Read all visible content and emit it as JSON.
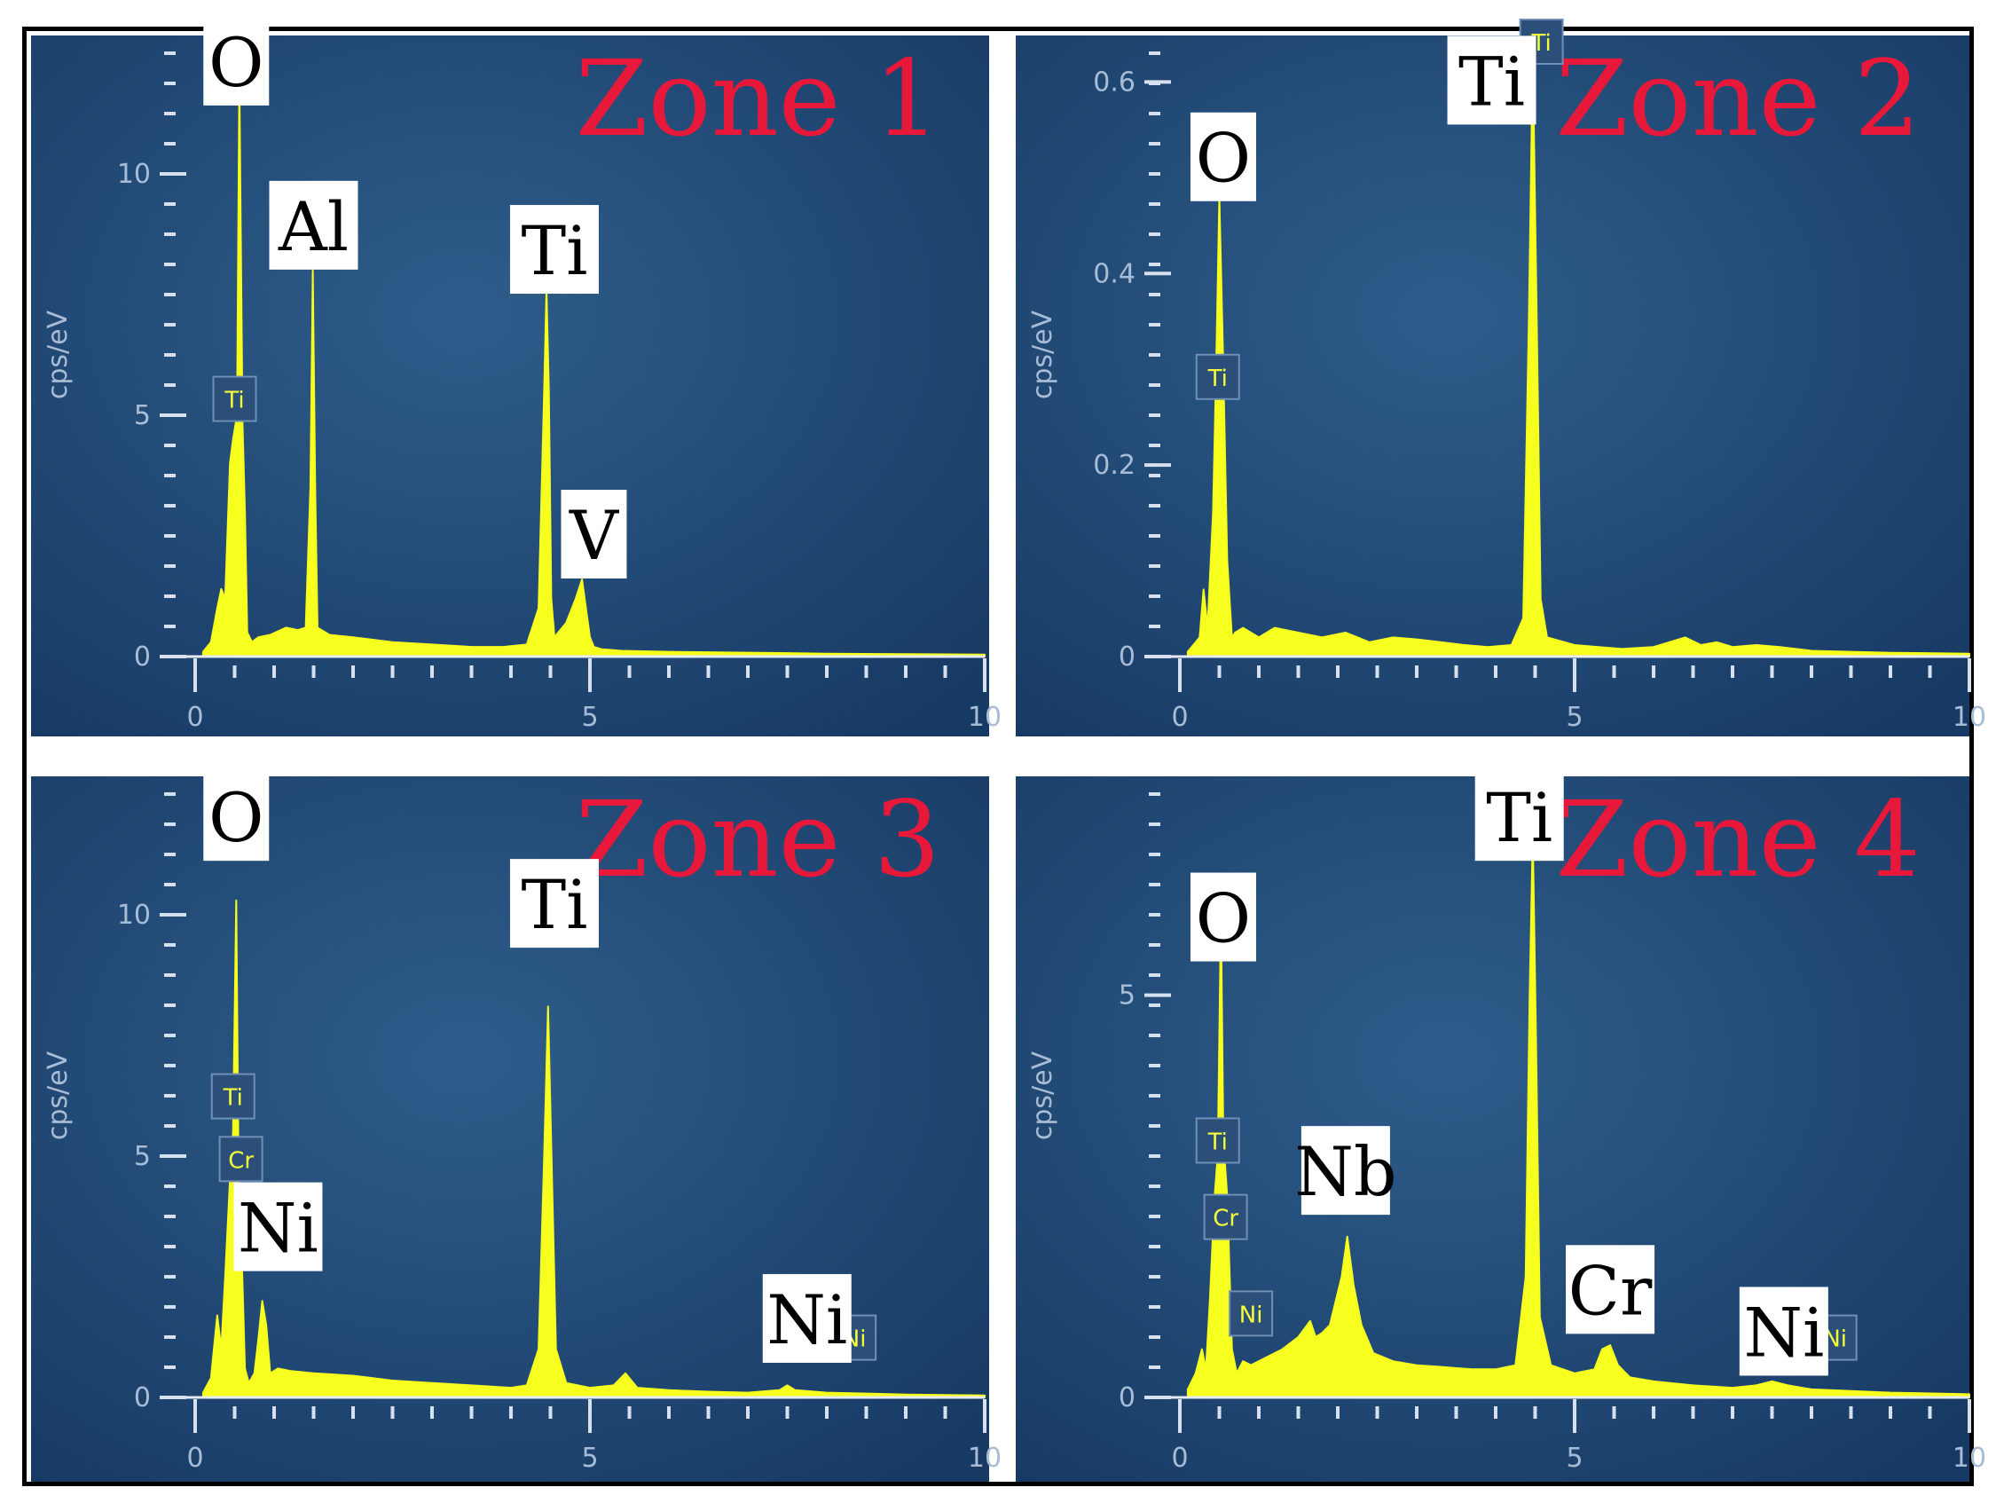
{
  "chart_data": [
    {
      "type": "area",
      "title": "Zone 1",
      "ylabel": "cps/eV",
      "xlim": [
        0,
        10
      ],
      "ylim": [
        0,
        12.5
      ],
      "xticks": [
        0,
        5,
        10
      ],
      "yticks": [
        0,
        5,
        10
      ],
      "series": [
        {
          "x": [
            0.1,
            0.2,
            0.28,
            0.33,
            0.38,
            0.44,
            0.48,
            0.53,
            0.56,
            0.6,
            0.63,
            0.66,
            0.72,
            0.8,
            0.95,
            1.15,
            1.3,
            1.4,
            1.46,
            1.49,
            1.52,
            1.55,
            1.6,
            1.7,
            2.0,
            2.5,
            3.0,
            3.5,
            3.9,
            4.2,
            4.35,
            4.42,
            4.45,
            4.48,
            4.51,
            4.55,
            4.6,
            4.7,
            4.82,
            4.9,
            4.95,
            5.0,
            5.05,
            5.15,
            5.4,
            6.0,
            7.0,
            8.0,
            9.0,
            10.0
          ],
          "y": [
            0.1,
            0.3,
            1.0,
            1.4,
            1.2,
            4.0,
            4.5,
            5.0,
            12.0,
            4.8,
            3.0,
            0.5,
            0.3,
            0.4,
            0.45,
            0.6,
            0.55,
            0.6,
            3.5,
            8.0,
            3.5,
            0.6,
            0.55,
            0.45,
            0.4,
            0.3,
            0.25,
            0.2,
            0.2,
            0.25,
            1.0,
            5.5,
            7.6,
            5.5,
            1.2,
            0.4,
            0.5,
            0.7,
            1.2,
            1.6,
            1.0,
            0.4,
            0.2,
            0.15,
            0.12,
            0.1,
            0.08,
            0.06,
            0.05,
            0.04
          ]
        }
      ],
      "peak_labels": [
        {
          "text": "O",
          "x": 0.52,
          "y": 12.3
        },
        {
          "text": "Al",
          "x": 1.5,
          "y": 8.9
        },
        {
          "text": "Ti",
          "x": 4.55,
          "y": 8.4
        },
        {
          "text": "V",
          "x": 5.05,
          "y": 2.5
        }
      ],
      "marker_labels": [
        {
          "text": "Ti",
          "x": 0.5,
          "y": 5.1
        }
      ]
    },
    {
      "type": "area",
      "title": "Zone 2",
      "ylabel": "cps/eV",
      "xlim": [
        0,
        10
      ],
      "ylim": [
        0,
        0.63
      ],
      "xticks": [
        0,
        5,
        10
      ],
      "yticks": [
        0,
        0.2,
        0.4,
        0.6
      ],
      "series": [
        {
          "x": [
            0.1,
            0.25,
            0.3,
            0.35,
            0.42,
            0.46,
            0.5,
            0.55,
            0.6,
            0.66,
            0.7,
            0.8,
            1.0,
            1.2,
            1.5,
            1.8,
            2.1,
            2.4,
            2.7,
            3.0,
            3.3,
            3.6,
            3.9,
            4.2,
            4.35,
            4.42,
            4.47,
            4.52,
            4.57,
            4.65,
            5.0,
            5.3,
            5.6,
            6.0,
            6.2,
            6.4,
            6.6,
            6.8,
            7.0,
            7.3,
            7.6,
            8.0,
            9.0,
            10.0
          ],
          "y": [
            0.005,
            0.02,
            0.07,
            0.03,
            0.15,
            0.3,
            0.48,
            0.3,
            0.1,
            0.02,
            0.025,
            0.03,
            0.02,
            0.03,
            0.025,
            0.02,
            0.025,
            0.015,
            0.02,
            0.018,
            0.015,
            0.012,
            0.01,
            0.012,
            0.04,
            0.35,
            0.63,
            0.35,
            0.06,
            0.02,
            0.012,
            0.01,
            0.008,
            0.01,
            0.015,
            0.02,
            0.012,
            0.015,
            0.01,
            0.012,
            0.01,
            0.006,
            0.004,
            0.003
          ]
        }
      ],
      "peak_labels": [
        {
          "text": "O",
          "x": 0.55,
          "y": 0.52
        },
        {
          "text": "Ti",
          "x": 3.95,
          "y": 0.6
        }
      ],
      "marker_labels": [
        {
          "text": "Ti",
          "x": 0.48,
          "y": 0.28
        },
        {
          "text": "Ti",
          "x": 4.58,
          "y": 0.63
        }
      ]
    },
    {
      "type": "area",
      "title": "Zone 3",
      "ylabel": "cps/eV",
      "xlim": [
        0,
        10
      ],
      "ylim": [
        0,
        12.5
      ],
      "xticks": [
        0,
        5,
        10
      ],
      "yticks": [
        0,
        5,
        10
      ],
      "series": [
        {
          "x": [
            0.1,
            0.2,
            0.28,
            0.33,
            0.38,
            0.44,
            0.48,
            0.52,
            0.55,
            0.58,
            0.63,
            0.68,
            0.75,
            0.8,
            0.85,
            0.9,
            0.95,
            1.05,
            1.2,
            1.5,
            2.0,
            2.5,
            3.0,
            3.5,
            4.0,
            4.2,
            4.35,
            4.42,
            4.47,
            4.52,
            4.57,
            4.7,
            5.0,
            5.3,
            5.45,
            5.6,
            6.0,
            6.5,
            7.0,
            7.4,
            7.5,
            7.6,
            8.0,
            8.5,
            9.0,
            10.0
          ],
          "y": [
            0.1,
            0.4,
            1.7,
            1.0,
            2.5,
            4.5,
            5.5,
            10.3,
            4.5,
            3.5,
            0.6,
            0.3,
            0.5,
            1.2,
            2.0,
            1.5,
            0.5,
            0.6,
            0.55,
            0.5,
            0.45,
            0.35,
            0.3,
            0.25,
            0.2,
            0.25,
            1.0,
            5.0,
            8.1,
            4.5,
            1.0,
            0.3,
            0.2,
            0.25,
            0.5,
            0.2,
            0.15,
            0.12,
            0.1,
            0.15,
            0.25,
            0.15,
            0.1,
            0.08,
            0.06,
            0.04
          ]
        }
      ],
      "peak_labels": [
        {
          "text": "O",
          "x": 0.52,
          "y": 12.0
        },
        {
          "text": "Ni",
          "x": 1.05,
          "y": 3.5
        },
        {
          "text": "Ti",
          "x": 4.55,
          "y": 10.2
        },
        {
          "text": "Ni",
          "x": 7.75,
          "y": 1.6
        }
      ],
      "marker_labels": [
        {
          "text": "Ti",
          "x": 0.48,
          "y": 6.0
        },
        {
          "text": "Cr",
          "x": 0.58,
          "y": 4.7
        },
        {
          "text": "Ni",
          "x": 8.35,
          "y": 1.0
        }
      ]
    },
    {
      "type": "area",
      "title": "Zone 4",
      "ylabel": "cps/eV",
      "xlim": [
        0,
        10
      ],
      "ylim": [
        0,
        7.5
      ],
      "xticks": [
        0,
        5,
        10
      ],
      "yticks": [
        0,
        5
      ],
      "series": [
        {
          "x": [
            0.1,
            0.2,
            0.28,
            0.33,
            0.38,
            0.44,
            0.48,
            0.52,
            0.55,
            0.6,
            0.66,
            0.72,
            0.8,
            0.9,
            1.1,
            1.3,
            1.5,
            1.65,
            1.72,
            1.8,
            1.9,
            2.05,
            2.12,
            2.2,
            2.3,
            2.45,
            2.7,
            3.0,
            3.3,
            3.7,
            4.0,
            4.25,
            4.38,
            4.43,
            4.47,
            4.51,
            4.56,
            4.7,
            5.0,
            5.25,
            5.35,
            5.45,
            5.55,
            5.7,
            6.0,
            6.5,
            7.0,
            7.3,
            7.5,
            7.7,
            8.0,
            8.5,
            9.0,
            10.0
          ],
          "y": [
            0.1,
            0.3,
            0.6,
            0.35,
            1.2,
            2.5,
            3.0,
            6.0,
            3.2,
            2.5,
            0.6,
            0.3,
            0.45,
            0.4,
            0.5,
            0.6,
            0.75,
            0.95,
            0.75,
            0.8,
            0.9,
            1.5,
            2.0,
            1.4,
            0.9,
            0.55,
            0.45,
            0.4,
            0.38,
            0.35,
            0.35,
            0.4,
            1.5,
            5.0,
            7.0,
            4.5,
            1.0,
            0.4,
            0.3,
            0.35,
            0.6,
            0.65,
            0.4,
            0.25,
            0.2,
            0.15,
            0.12,
            0.15,
            0.2,
            0.15,
            0.1,
            0.08,
            0.06,
            0.04
          ]
        }
      ],
      "peak_labels": [
        {
          "text": "O",
          "x": 0.55,
          "y": 5.95
        },
        {
          "text": "Nb",
          "x": 2.1,
          "y": 2.8
        },
        {
          "text": "Ti",
          "x": 4.3,
          "y": 7.2
        },
        {
          "text": "Cr",
          "x": 5.45,
          "y": 1.32
        },
        {
          "text": "Ni",
          "x": 7.65,
          "y": 0.8
        }
      ],
      "marker_labels": [
        {
          "text": "Ti",
          "x": 0.48,
          "y": 3.05
        },
        {
          "text": "Cr",
          "x": 0.58,
          "y": 2.1
        },
        {
          "text": "Ni",
          "x": 0.9,
          "y": 0.9
        },
        {
          "text": "Ni",
          "x": 8.3,
          "y": 0.6
        }
      ]
    }
  ]
}
